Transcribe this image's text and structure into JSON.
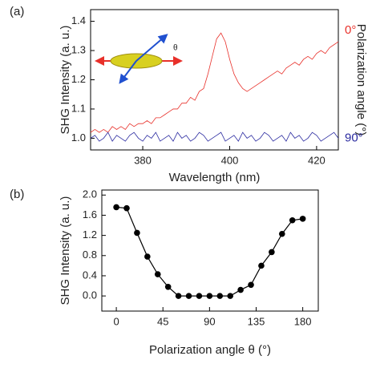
{
  "chart_data": [
    {
      "type": "line",
      "panel_label": "(a)",
      "ylabel": "SHG Intensity (a. u.)",
      "xlabel": "Wavelength (nm)",
      "y2label": "Polarization angle (°)",
      "inset_label": "θ",
      "xlim": [
        368,
        425
      ],
      "ylim": [
        0.96,
        1.44
      ],
      "xticks": [
        380,
        400,
        420
      ],
      "yticks": [
        {
          "value": 1,
          "label": "1.0"
        },
        1.1,
        1.2,
        1.3,
        1.4
      ],
      "x": [
        368,
        369,
        370,
        371,
        372,
        373,
        374,
        375,
        376,
        377,
        378,
        379,
        380,
        381,
        382,
        383,
        384,
        385,
        386,
        387,
        388,
        389,
        390,
        391,
        392,
        393,
        394,
        395,
        396,
        397,
        398,
        399,
        400,
        401,
        402,
        403,
        404,
        405,
        406,
        407,
        408,
        409,
        410,
        411,
        412,
        413,
        414,
        415,
        416,
        417,
        418,
        419,
        420,
        421,
        422,
        423,
        424,
        425
      ],
      "series": [
        {
          "name": "0°",
          "color": "#e8302a",
          "values": [
            1.02,
            1.03,
            1.02,
            1.03,
            1.02,
            1.04,
            1.03,
            1.04,
            1.03,
            1.05,
            1.04,
            1.05,
            1.05,
            1.06,
            1.05,
            1.07,
            1.07,
            1.08,
            1.09,
            1.1,
            1.1,
            1.12,
            1.12,
            1.14,
            1.13,
            1.16,
            1.17,
            1.22,
            1.28,
            1.34,
            1.36,
            1.33,
            1.27,
            1.22,
            1.19,
            1.17,
            1.16,
            1.17,
            1.18,
            1.19,
            1.2,
            1.21,
            1.22,
            1.23,
            1.22,
            1.24,
            1.25,
            1.26,
            1.25,
            1.27,
            1.28,
            1.27,
            1.29,
            1.3,
            1.29,
            1.31,
            1.32,
            1.33
          ]
        },
        {
          "name": "90°",
          "color": "#2b2ba0",
          "values": [
            1.0,
            1.01,
            0.99,
            1.0,
            1.02,
            0.99,
            1.01,
            1.0,
            0.99,
            1.01,
            1.02,
            1.0,
            0.99,
            1.01,
            1.0,
            1.02,
            0.99,
            1.0,
            1.01,
            0.99,
            1.02,
            1.0,
            1.01,
            0.99,
            1.0,
            1.02,
            1.01,
            0.99,
            1.0,
            1.01,
            1.02,
            0.99,
            1.0,
            1.01,
            0.99,
            1.02,
            1.0,
            1.01,
            0.99,
            1.0,
            1.02,
            1.01,
            0.99,
            1.0,
            1.01,
            0.99,
            1.02,
            1.0,
            1.01,
            0.99,
            1.0,
            1.02,
            1.01,
            0.99,
            1.0,
            1.01,
            1.02,
            1.0
          ]
        }
      ]
    },
    {
      "type": "line",
      "markers": true,
      "panel_label": "(b)",
      "ylabel": "SHG Intensity (a. u.)",
      "xlabel": "Polarization angle θ (°)",
      "xlim": [
        -14,
        195
      ],
      "ylim": [
        -0.3,
        2.1
      ],
      "xticks": [
        0,
        45,
        90,
        135,
        180
      ],
      "yticks": [
        {
          "value": 0,
          "label": "0.0"
        },
        0.4,
        0.8,
        1.2,
        1.6,
        {
          "value": 2,
          "label": "2.0"
        }
      ],
      "x": [
        0,
        10,
        20,
        30,
        40,
        50,
        60,
        70,
        80,
        90,
        100,
        110,
        120,
        130,
        140,
        150,
        160,
        170,
        180
      ],
      "series": [
        {
          "color": "#000000",
          "values": [
            1.76,
            1.74,
            1.25,
            0.78,
            0.43,
            0.18,
            0,
            0,
            0,
            0,
            0,
            0,
            0.12,
            0.22,
            0.6,
            0.87,
            1.23,
            1.5,
            1.53
          ]
        }
      ]
    }
  ]
}
